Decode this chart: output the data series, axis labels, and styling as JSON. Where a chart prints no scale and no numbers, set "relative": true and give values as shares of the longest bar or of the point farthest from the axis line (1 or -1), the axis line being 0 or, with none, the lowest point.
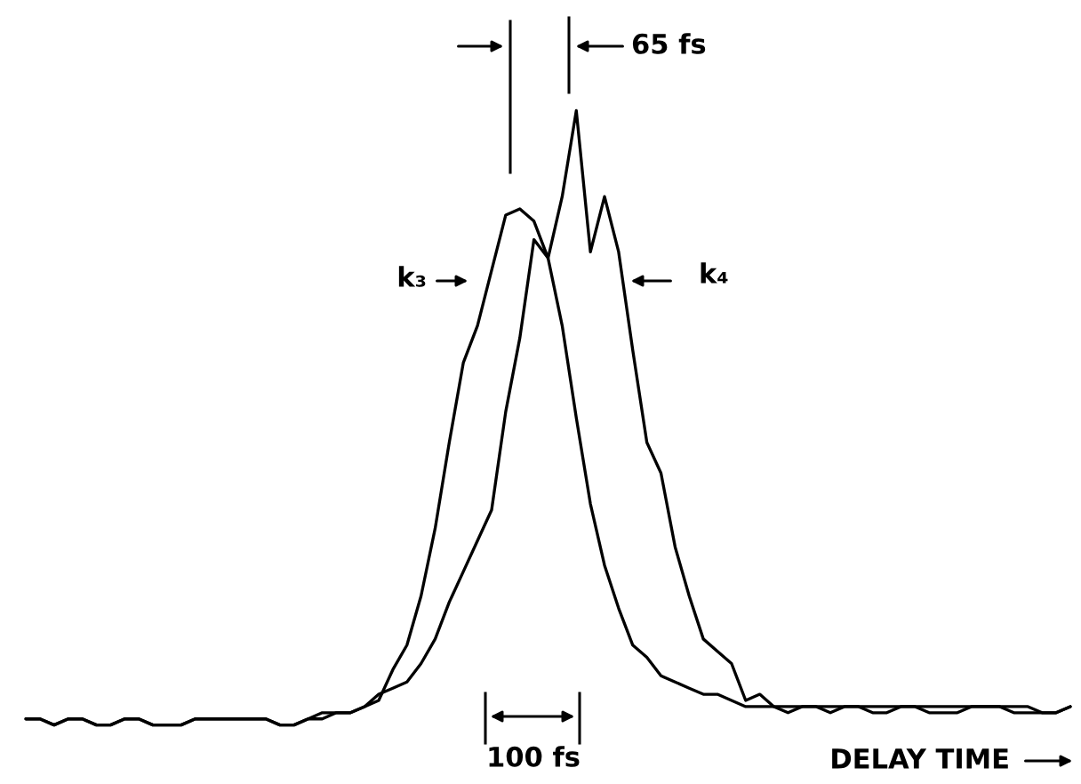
{
  "chart_data": {
    "type": "line",
    "relative": true,
    "xlabel": "DELAY TIME",
    "annotations": [
      "65 fs",
      "100 fs"
    ],
    "categories": [
      null,
      null,
      null,
      null,
      null,
      null,
      null,
      null,
      null,
      null,
      null,
      null,
      null,
      null,
      null,
      null,
      null,
      null,
      null,
      null,
      null,
      null,
      null,
      null,
      null,
      null,
      null,
      null,
      null,
      null,
      null,
      null,
      null,
      null,
      null,
      null,
      null,
      null,
      null,
      null,
      null,
      null,
      null,
      null,
      null,
      null,
      null,
      null,
      null,
      null,
      null,
      null,
      null,
      null,
      null,
      null,
      null,
      null,
      null,
      null,
      null,
      null,
      null,
      null,
      null,
      null,
      null,
      null,
      null,
      null,
      null,
      null,
      null,
      null,
      null
    ],
    "series": [
      {
        "name": "k₃",
        "color": "#000000",
        "values": [
          0.01,
          0.01,
          0.0,
          0.01,
          0.01,
          0.0,
          0.0,
          0.01,
          0.01,
          0.0,
          0.0,
          0.0,
          0.01,
          0.01,
          0.01,
          0.01,
          0.01,
          0.01,
          0.0,
          0.0,
          0.01,
          0.02,
          0.02,
          0.02,
          0.03,
          0.04,
          0.09,
          0.13,
          0.21,
          0.32,
          0.46,
          0.59,
          0.65,
          0.74,
          0.83,
          0.84,
          0.82,
          0.76,
          0.65,
          0.5,
          0.36,
          0.26,
          0.19,
          0.13,
          0.11,
          0.08,
          0.07,
          0.06,
          0.05,
          0.05,
          0.04,
          0.03,
          0.03,
          0.03,
          0.03,
          0.03,
          0.03,
          0.03,
          0.03,
          0.03,
          0.03,
          0.03,
          0.03,
          0.03,
          0.03,
          0.03,
          0.03,
          0.03,
          0.03,
          0.03,
          0.03,
          0.03,
          0.02,
          0.02,
          0.03
        ]
      },
      {
        "name": "k₄",
        "color": "#000000",
        "values": [
          0.01,
          0.01,
          0.0,
          0.01,
          0.01,
          0.0,
          0.0,
          0.01,
          0.01,
          0.0,
          0.0,
          0.0,
          0.01,
          0.01,
          0.01,
          0.01,
          0.01,
          0.01,
          0.0,
          0.0,
          0.01,
          0.01,
          0.02,
          0.02,
          0.03,
          0.05,
          0.06,
          0.07,
          0.1,
          0.14,
          0.2,
          0.25,
          0.3,
          0.35,
          0.51,
          0.63,
          0.79,
          0.76,
          0.86,
          1.0,
          0.77,
          0.86,
          0.77,
          0.61,
          0.46,
          0.41,
          0.29,
          0.21,
          0.14,
          0.12,
          0.1,
          0.04,
          0.05,
          0.03,
          0.02,
          0.03,
          0.03,
          0.02,
          0.03,
          0.03,
          0.02,
          0.02,
          0.03,
          0.03,
          0.02,
          0.02,
          0.02,
          0.03,
          0.03,
          0.03,
          0.02,
          0.02,
          0.02,
          0.02,
          0.03
        ]
      }
    ]
  }
}
